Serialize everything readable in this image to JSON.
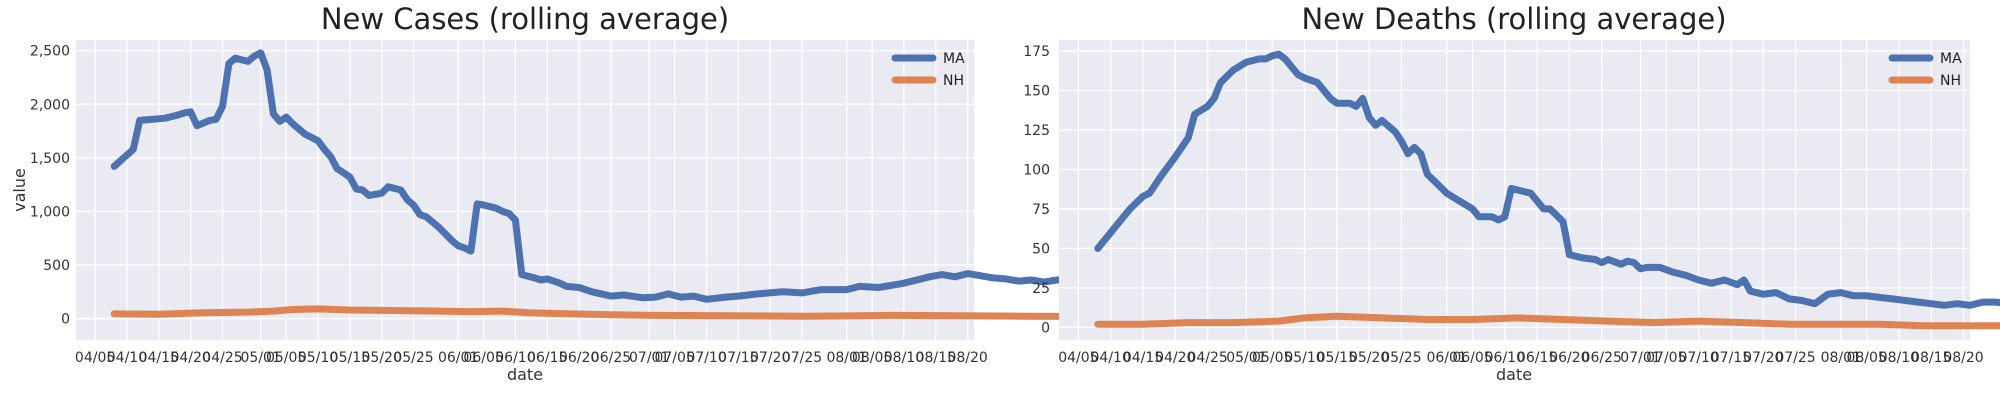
{
  "colors": {
    "MA": "#4c72b0",
    "NH": "#dd8452",
    "plot_bg": "#eaeaf2",
    "grid": "#ffffff"
  },
  "chart_data": [
    {
      "type": "line",
      "title": "New Cases (rolling average)",
      "xlabel": "date",
      "ylabel": "value",
      "ylim": [
        -200,
        2600
      ],
      "yticks": [
        0,
        500,
        1000,
        1500,
        2000,
        2500
      ],
      "ytick_labels": [
        "0",
        "500",
        "1,000",
        "1,500",
        "2,000",
        "2,500"
      ],
      "xlim": [
        "04/02",
        "08/21"
      ],
      "xticks": [
        "04/05",
        "04/10",
        "04/15",
        "04/20",
        "04/25",
        "05/01",
        "05/05",
        "05/10",
        "05/15",
        "05/20",
        "05/25",
        "06/01",
        "06/05",
        "06/10",
        "06/15",
        "06/20",
        "06/25",
        "07/01",
        "07/05",
        "07/10",
        "07/15",
        "07/20",
        "07/25",
        "08/01",
        "08/05",
        "08/10",
        "08/15",
        "08/20"
      ],
      "grid": true,
      "legend": "top-right",
      "series": [
        {
          "name": "MA",
          "points": [
            [
              "04/08",
              1420
            ],
            [
              "04/11",
              1580
            ],
            [
              "04/12",
              1850
            ],
            [
              "04/14",
              1860
            ],
            [
              "04/16",
              1870
            ],
            [
              "04/18",
              1900
            ],
            [
              "04/19",
              1920
            ],
            [
              "04/20",
              1930
            ],
            [
              "04/21",
              1800
            ],
            [
              "04/23",
              1850
            ],
            [
              "04/24",
              1860
            ],
            [
              "04/25",
              1980
            ],
            [
              "04/26",
              2380
            ],
            [
              "04/27",
              2430
            ],
            [
              "04/29",
              2400
            ],
            [
              "04/30",
              2450
            ],
            [
              "05/01",
              2480
            ],
            [
              "05/02",
              2320
            ],
            [
              "05/03",
              1910
            ],
            [
              "05/04",
              1840
            ],
            [
              "05/05",
              1880
            ],
            [
              "05/06",
              1820
            ],
            [
              "05/08",
              1720
            ],
            [
              "05/10",
              1660
            ],
            [
              "05/11",
              1580
            ],
            [
              "05/12",
              1510
            ],
            [
              "05/13",
              1400
            ],
            [
              "05/15",
              1320
            ],
            [
              "05/16",
              1210
            ],
            [
              "05/17",
              1200
            ],
            [
              "05/18",
              1150
            ],
            [
              "05/20",
              1170
            ],
            [
              "05/21",
              1230
            ],
            [
              "05/23",
              1200
            ],
            [
              "05/24",
              1110
            ],
            [
              "05/25",
              1060
            ],
            [
              "05/26",
              970
            ],
            [
              "05/27",
              950
            ],
            [
              "05/29",
              850
            ],
            [
              "05/31",
              730
            ],
            [
              "06/01",
              680
            ],
            [
              "06/02",
              660
            ],
            [
              "06/03",
              630
            ],
            [
              "06/04",
              1070
            ],
            [
              "06/05",
              1060
            ],
            [
              "06/07",
              1030
            ],
            [
              "06/08",
              1000
            ],
            [
              "06/09",
              980
            ],
            [
              "06/10",
              920
            ],
            [
              "06/11",
              410
            ],
            [
              "06/13",
              380
            ],
            [
              "06/14",
              360
            ],
            [
              "06/15",
              370
            ],
            [
              "06/17",
              330
            ],
            [
              "06/18",
              300
            ],
            [
              "06/20",
              290
            ],
            [
              "06/22",
              250
            ],
            [
              "06/25",
              210
            ],
            [
              "06/27",
              220
            ],
            [
              "06/30",
              195
            ],
            [
              "07/02",
              200
            ],
            [
              "07/04",
              230
            ],
            [
              "07/06",
              200
            ],
            [
              "07/08",
              210
            ],
            [
              "07/10",
              180
            ],
            [
              "07/13",
              200
            ],
            [
              "07/15",
              210
            ],
            [
              "07/18",
              230
            ],
            [
              "07/22",
              250
            ],
            [
              "07/25",
              240
            ],
            [
              "07/28",
              270
            ],
            [
              "08/01",
              270
            ],
            [
              "08/03",
              300
            ],
            [
              "08/06",
              290
            ],
            [
              "08/08",
              310
            ],
            [
              "08/10",
              330
            ],
            [
              "08/12",
              360
            ],
            [
              "08/14",
              390
            ],
            [
              "08/16",
              410
            ],
            [
              "08/18",
              390
            ],
            [
              "08/20",
              420
            ],
            [
              "08/22",
              400
            ],
            [
              "08/24",
              380
            ],
            [
              "08/26",
              370
            ],
            [
              "08/28",
              350
            ],
            [
              "08/30",
              360
            ],
            [
              "09/01",
              340
            ],
            [
              "09/03",
              360
            ],
            [
              "09/05",
              370
            ]
          ]
        },
        {
          "name": "NH",
          "points": [
            [
              "04/08",
              45
            ],
            [
              "04/15",
              40
            ],
            [
              "04/22",
              55
            ],
            [
              "04/29",
              60
            ],
            [
              "05/03",
              70
            ],
            [
              "05/06",
              85
            ],
            [
              "05/10",
              90
            ],
            [
              "05/15",
              80
            ],
            [
              "05/22",
              75
            ],
            [
              "05/29",
              70
            ],
            [
              "06/03",
              65
            ],
            [
              "06/08",
              70
            ],
            [
              "06/12",
              55
            ],
            [
              "06/18",
              45
            ],
            [
              "06/25",
              35
            ],
            [
              "07/02",
              30
            ],
            [
              "07/10",
              28
            ],
            [
              "07/18",
              25
            ],
            [
              "07/25",
              22
            ],
            [
              "08/01",
              25
            ],
            [
              "08/08",
              30
            ],
            [
              "08/15",
              28
            ],
            [
              "08/22",
              25
            ],
            [
              "08/29",
              22
            ],
            [
              "09/05",
              20
            ]
          ]
        }
      ]
    },
    {
      "type": "line",
      "title": "New Deaths (rolling average)",
      "xlabel": "date",
      "ylabel": "",
      "ylim": [
        -8,
        182
      ],
      "yticks": [
        0,
        25,
        50,
        75,
        100,
        125,
        150,
        175
      ],
      "ytick_labels": [
        "0",
        "25",
        "50",
        "75",
        "100",
        "125",
        "150",
        "175"
      ],
      "xlim": [
        "04/02",
        "08/21"
      ],
      "xticks": [
        "04/05",
        "04/10",
        "04/15",
        "04/20",
        "04/25",
        "05/01",
        "05/05",
        "05/10",
        "05/15",
        "05/20",
        "05/25",
        "06/01",
        "06/05",
        "06/10",
        "06/15",
        "06/20",
        "06/25",
        "07/01",
        "07/05",
        "07/10",
        "07/15",
        "07/20",
        "07/25",
        "08/01",
        "08/05",
        "08/10",
        "08/15",
        "08/20"
      ],
      "grid": true,
      "legend": "top-right",
      "series": [
        {
          "name": "MA",
          "points": [
            [
              "04/08",
              50
            ],
            [
              "04/11",
              65
            ],
            [
              "04/13",
              75
            ],
            [
              "04/15",
              83
            ],
            [
              "04/16",
              85
            ],
            [
              "04/18",
              97
            ],
            [
              "04/20",
              108
            ],
            [
              "04/22",
              120
            ],
            [
              "04/23",
              135
            ],
            [
              "04/25",
              140
            ],
            [
              "04/26",
              145
            ],
            [
              "04/27",
              155
            ],
            [
              "04/29",
              163
            ],
            [
              "05/01",
              168
            ],
            [
              "05/03",
              170
            ],
            [
              "05/04",
              170
            ],
            [
              "05/05",
              172
            ],
            [
              "05/06",
              173
            ],
            [
              "05/07",
              170
            ],
            [
              "05/08",
              165
            ],
            [
              "05/09",
              160
            ],
            [
              "05/10",
              158
            ],
            [
              "05/12",
              155
            ],
            [
              "05/13",
              150
            ],
            [
              "05/14",
              145
            ],
            [
              "05/15",
              142
            ],
            [
              "05/17",
              142
            ],
            [
              "05/18",
              140
            ],
            [
              "05/19",
              145
            ],
            [
              "05/20",
              133
            ],
            [
              "05/21",
              128
            ],
            [
              "05/22",
              131
            ],
            [
              "05/24",
              124
            ],
            [
              "05/25",
              118
            ],
            [
              "05/26",
              110
            ],
            [
              "05/27",
              114
            ],
            [
              "05/28",
              110
            ],
            [
              "05/29",
              97
            ],
            [
              "05/31",
              89
            ],
            [
              "06/01",
              85
            ],
            [
              "06/03",
              80
            ],
            [
              "06/05",
              75
            ],
            [
              "06/06",
              70
            ],
            [
              "06/08",
              70
            ],
            [
              "06/09",
              68
            ],
            [
              "06/10",
              70
            ],
            [
              "06/11",
              88
            ],
            [
              "06/12",
              87
            ],
            [
              "06/14",
              85
            ],
            [
              "06/16",
              75
            ],
            [
              "06/17",
              75
            ],
            [
              "06/19",
              67
            ],
            [
              "06/20",
              46
            ],
            [
              "06/22",
              44
            ],
            [
              "06/24",
              43
            ],
            [
              "06/25",
              41
            ],
            [
              "06/26",
              43
            ],
            [
              "06/28",
              40
            ],
            [
              "06/29",
              42
            ],
            [
              "06/30",
              41
            ],
            [
              "07/01",
              37
            ],
            [
              "07/02",
              38
            ],
            [
              "07/04",
              38
            ],
            [
              "07/06",
              35
            ],
            [
              "07/08",
              33
            ],
            [
              "07/10",
              30
            ],
            [
              "07/12",
              28
            ],
            [
              "07/14",
              30
            ],
            [
              "07/16",
              27
            ],
            [
              "07/17",
              30
            ],
            [
              "07/18",
              23
            ],
            [
              "07/20",
              21
            ],
            [
              "07/22",
              22
            ],
            [
              "07/24",
              18
            ],
            [
              "07/26",
              17
            ],
            [
              "07/28",
              15
            ],
            [
              "07/30",
              21
            ],
            [
              "08/01",
              22
            ],
            [
              "08/03",
              20
            ],
            [
              "08/05",
              20
            ],
            [
              "08/07",
              19
            ],
            [
              "08/09",
              18
            ],
            [
              "08/11",
              17
            ],
            [
              "08/13",
              16
            ],
            [
              "08/15",
              15
            ],
            [
              "08/17",
              14
            ],
            [
              "08/19",
              15
            ],
            [
              "08/21",
              14
            ],
            [
              "08/23",
              16
            ],
            [
              "08/25",
              16
            ],
            [
              "08/27",
              15
            ],
            [
              "08/29",
              14
            ],
            [
              "09/01",
              13
            ],
            [
              "09/03",
              14
            ],
            [
              "09/05",
              15
            ]
          ]
        },
        {
          "name": "NH",
          "points": [
            [
              "04/08",
              2
            ],
            [
              "04/15",
              2
            ],
            [
              "04/22",
              3
            ],
            [
              "04/29",
              3
            ],
            [
              "05/06",
              4
            ],
            [
              "05/10",
              6
            ],
            [
              "05/15",
              7
            ],
            [
              "05/22",
              6
            ],
            [
              "05/29",
              5
            ],
            [
              "06/05",
              5
            ],
            [
              "06/12",
              6
            ],
            [
              "06/19",
              5
            ],
            [
              "06/26",
              4
            ],
            [
              "07/03",
              3
            ],
            [
              "07/10",
              4
            ],
            [
              "07/17",
              3
            ],
            [
              "07/24",
              2
            ],
            [
              "07/31",
              2
            ],
            [
              "08/07",
              2
            ],
            [
              "08/14",
              1
            ],
            [
              "08/21",
              1
            ],
            [
              "08/28",
              1
            ],
            [
              "09/05",
              1
            ]
          ]
        }
      ]
    }
  ]
}
